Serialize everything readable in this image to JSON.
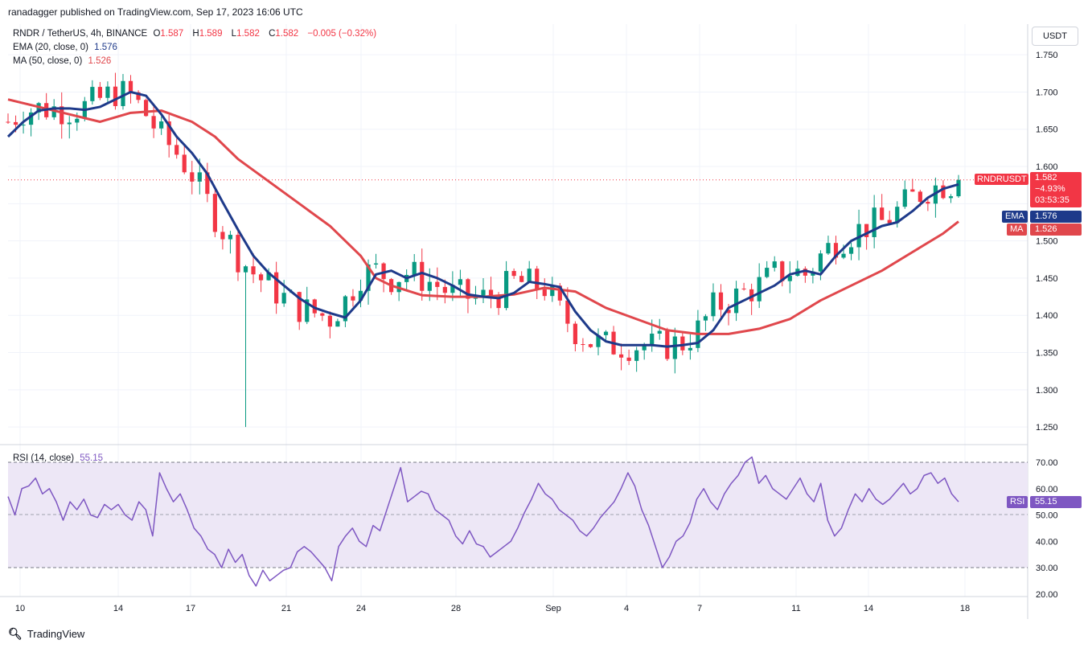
{
  "header": {
    "published": "ranadagger published on TradingView.com, Sep 17, 2023 16:06 UTC"
  },
  "legend": {
    "symbol": "RNDR / TetherUS, 4h, BINANCE",
    "o_label": "O",
    "o": "1.587",
    "h_label": "H",
    "h": "1.589",
    "l_label": "L",
    "l": "1.582",
    "c_label": "C",
    "c": "1.582",
    "change": "−0.005 (−0.32%)",
    "ema_label": "EMA (20, close, 0)",
    "ema_value": "1.576",
    "ma_label": "MA (50, close, 0)",
    "ma_value": "1.526"
  },
  "currency_button": "USDT",
  "price_tag": {
    "ticker": "RNDRUSDT",
    "price": "1.582",
    "change": "−4.93%",
    "countdown": "03:53:35"
  },
  "ema_tag": {
    "label": "EMA",
    "value": "1.576"
  },
  "ma_tag": {
    "label": "MA",
    "value": "1.526"
  },
  "rsi": {
    "label": "RSI (14, close)",
    "value": "55.15",
    "tag_label": "RSI",
    "ticks": [
      "70.00",
      "60.00",
      "50.00",
      "40.00",
      "30.00",
      "20.00"
    ]
  },
  "footer": {
    "logo_text": "TradingView"
  },
  "colors": {
    "up": "#089981",
    "down": "#f23645",
    "ema": "#1e3a8a",
    "ma": "#e0474c",
    "rsi_line": "#7e57c2",
    "rsi_band": "#ede7f6"
  },
  "chart_data": [
    {
      "type": "candlestick",
      "title": "RNDR / TetherUS, 4h, BINANCE",
      "y_ticks": [
        "1.750",
        "1.700",
        "1.650",
        "1.600",
        "1.550",
        "1.500",
        "1.450",
        "1.400",
        "1.350",
        "1.300",
        "1.250"
      ],
      "x_ticks": [
        "10",
        "14",
        "17",
        "21",
        "24",
        "28",
        "Sep",
        "4",
        "7",
        "11",
        "14",
        "18"
      ],
      "ylim": [
        1.235,
        1.775
      ],
      "last_price": 1.582,
      "series": [
        {
          "name": "EMA (20, close, 0)",
          "points": [
            [
              0,
              1.64
            ],
            [
              2,
              1.66
            ],
            [
              4,
              1.675
            ],
            [
              6,
              1.678
            ],
            [
              8,
              1.678
            ],
            [
              10,
              1.676
            ],
            [
              12,
              1.68
            ],
            [
              14,
              1.69
            ],
            [
              16,
              1.7
            ],
            [
              18,
              1.695
            ],
            [
              20,
              1.67
            ],
            [
              22,
              1.64
            ],
            [
              24,
              1.618
            ],
            [
              26,
              1.59
            ],
            [
              28,
              1.552
            ],
            [
              30,
              1.515
            ],
            [
              32,
              1.48
            ],
            [
              34,
              1.457
            ],
            [
              36,
              1.44
            ],
            [
              38,
              1.423
            ],
            [
              40,
              1.41
            ],
            [
              42,
              1.403
            ],
            [
              44,
              1.397
            ],
            [
              46,
              1.42
            ],
            [
              48,
              1.455
            ],
            [
              50,
              1.46
            ],
            [
              52,
              1.45
            ],
            [
              54,
              1.457
            ],
            [
              56,
              1.45
            ],
            [
              58,
              1.44
            ],
            [
              60,
              1.428
            ],
            [
              62,
              1.425
            ],
            [
              64,
              1.423
            ],
            [
              66,
              1.43
            ],
            [
              68,
              1.445
            ],
            [
              70,
              1.442
            ],
            [
              72,
              1.438
            ],
            [
              74,
              1.405
            ],
            [
              76,
              1.38
            ],
            [
              78,
              1.365
            ],
            [
              80,
              1.36
            ],
            [
              82,
              1.36
            ],
            [
              84,
              1.36
            ],
            [
              86,
              1.358
            ],
            [
              88,
              1.36
            ],
            [
              90,
              1.363
            ],
            [
              92,
              1.38
            ],
            [
              94,
              1.41
            ],
            [
              96,
              1.42
            ],
            [
              98,
              1.43
            ],
            [
              100,
              1.44
            ],
            [
              102,
              1.455
            ],
            [
              104,
              1.46
            ],
            [
              106,
              1.455
            ],
            [
              108,
              1.48
            ],
            [
              110,
              1.5
            ],
            [
              112,
              1.51
            ],
            [
              114,
              1.52
            ],
            [
              116,
              1.525
            ],
            [
              118,
              1.54
            ],
            [
              120,
              1.558
            ],
            [
              122,
              1.57
            ],
            [
              124,
              1.576
            ]
          ]
        },
        {
          "name": "MA (50, close, 0)",
          "points": [
            [
              0,
              1.69
            ],
            [
              4,
              1.68
            ],
            [
              8,
              1.67
            ],
            [
              12,
              1.66
            ],
            [
              16,
              1.672
            ],
            [
              20,
              1.675
            ],
            [
              24,
              1.66
            ],
            [
              27,
              1.64
            ],
            [
              30,
              1.61
            ],
            [
              34,
              1.58
            ],
            [
              38,
              1.55
            ],
            [
              42,
              1.52
            ],
            [
              46,
              1.48
            ],
            [
              48,
              1.45
            ],
            [
              50,
              1.44
            ],
            [
              54,
              1.427
            ],
            [
              58,
              1.425
            ],
            [
              62,
              1.425
            ],
            [
              66,
              1.428
            ],
            [
              70,
              1.437
            ],
            [
              74,
              1.432
            ],
            [
              78,
              1.41
            ],
            [
              82,
              1.395
            ],
            [
              86,
              1.38
            ],
            [
              90,
              1.375
            ],
            [
              94,
              1.375
            ],
            [
              98,
              1.382
            ],
            [
              102,
              1.395
            ],
            [
              106,
              1.42
            ],
            [
              110,
              1.44
            ],
            [
              114,
              1.46
            ],
            [
              118,
              1.485
            ],
            [
              122,
              1.51
            ],
            [
              124,
              1.526
            ]
          ]
        }
      ]
    },
    {
      "type": "line",
      "title": "RSI (14, close)",
      "ylim": [
        17,
        73
      ],
      "y_ticks": [
        70,
        60,
        50,
        40,
        30,
        20
      ],
      "series": [
        {
          "name": "RSI (14, close)",
          "values": [
            57,
            50,
            60,
            61,
            64,
            58,
            60,
            55,
            48,
            55,
            52,
            56,
            50,
            49,
            54,
            52,
            54,
            50,
            48,
            55,
            52,
            42,
            66,
            60,
            55,
            58,
            52,
            45,
            42,
            37,
            35,
            30,
            37,
            32,
            35,
            27,
            23,
            29,
            25,
            27,
            29,
            30,
            36,
            38,
            36,
            33,
            30,
            25,
            38,
            42,
            45,
            40,
            38,
            46,
            44,
            52,
            60,
            68,
            55,
            57,
            59,
            58,
            52,
            50,
            48,
            42,
            39,
            44,
            39,
            38,
            34,
            36,
            38,
            40,
            45,
            51,
            56,
            62,
            58,
            56,
            52,
            50,
            48,
            44,
            42,
            45,
            49,
            52,
            55,
            60,
            66,
            61,
            52,
            46,
            38,
            30,
            34,
            40,
            42,
            47,
            56,
            60,
            55,
            52,
            58,
            62,
            65,
            70,
            72,
            62,
            65,
            60,
            58,
            56,
            60,
            64,
            58,
            55,
            62,
            48,
            42,
            45,
            52,
            58,
            55,
            60,
            56,
            54,
            56,
            59,
            62,
            58,
            60,
            65,
            66,
            62,
            64,
            58,
            55
          ]
        }
      ]
    }
  ]
}
